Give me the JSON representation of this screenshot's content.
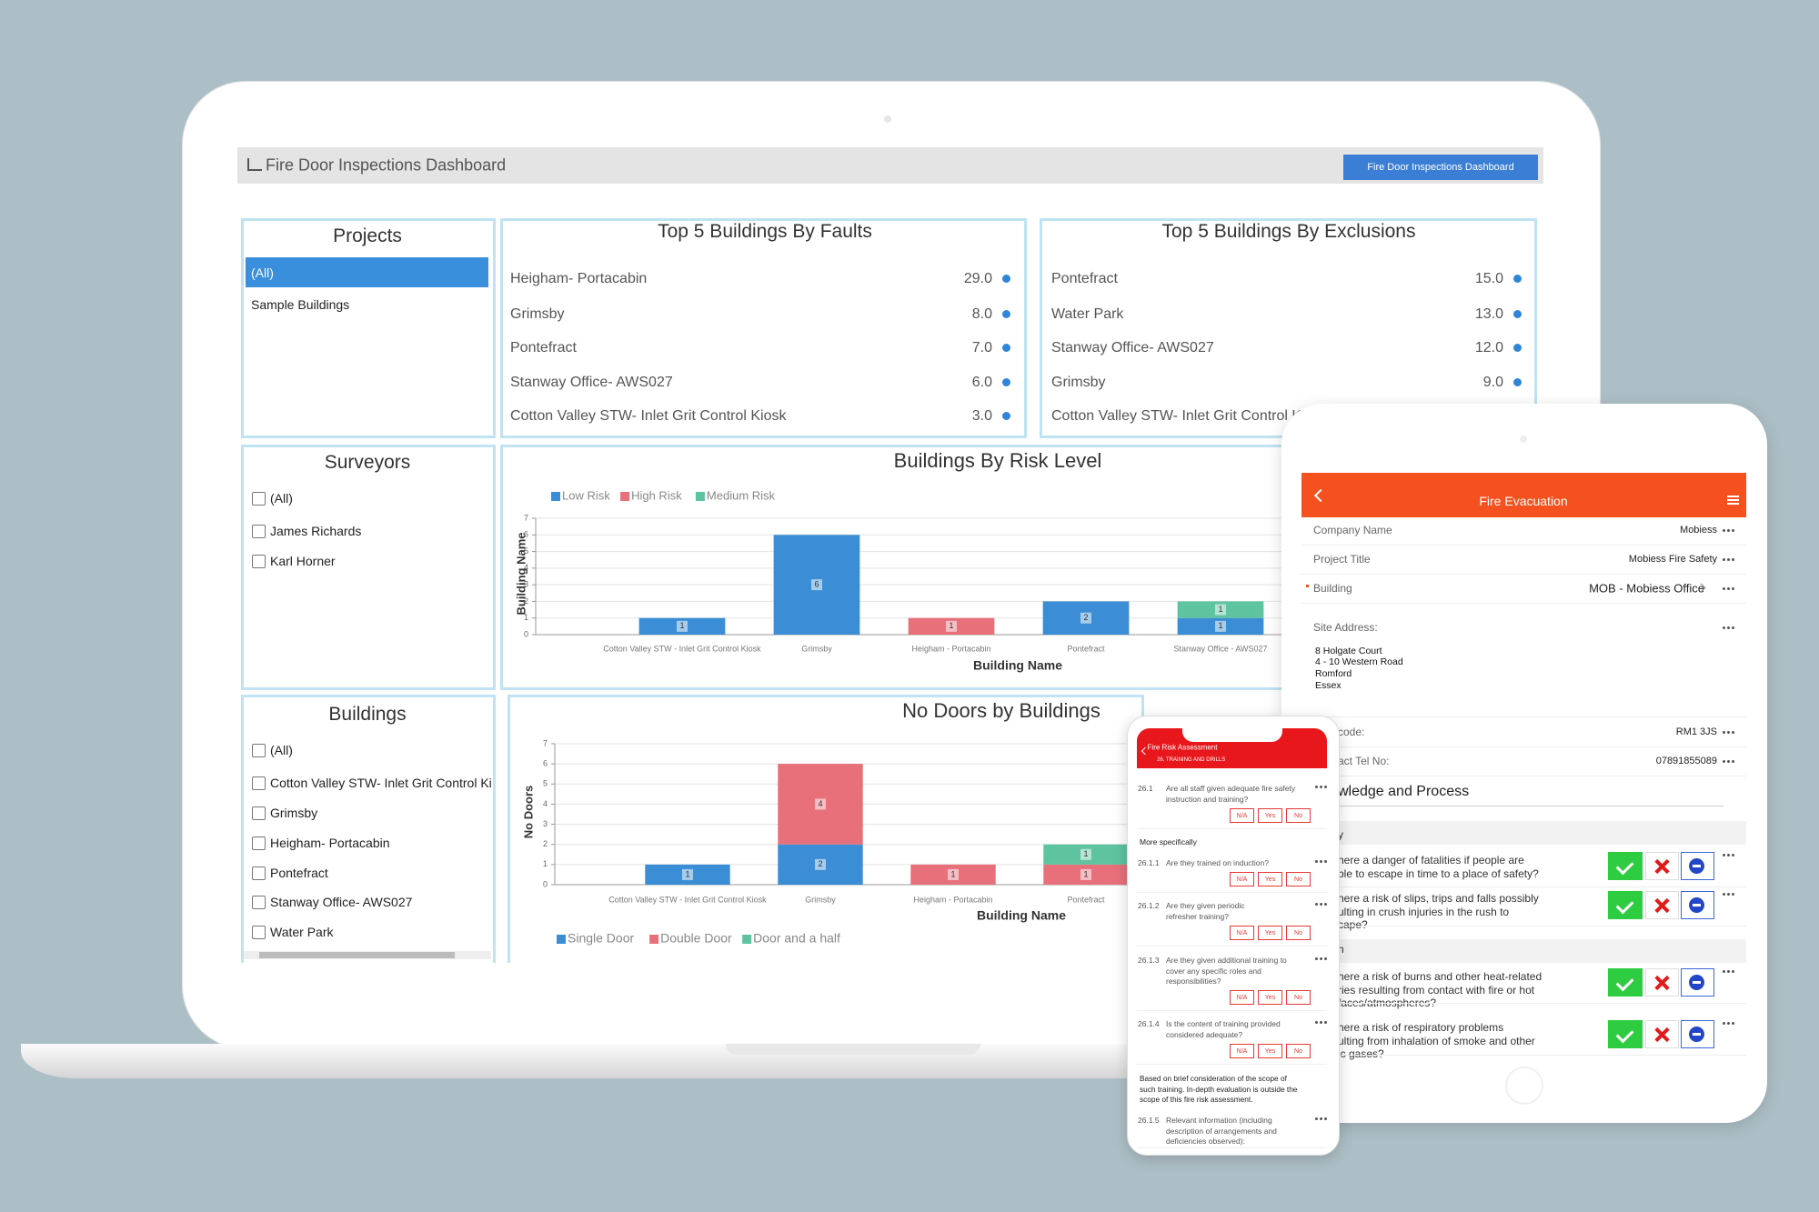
{
  "header": {
    "title": "Fire Door Inspections Dashboard",
    "button": "Fire Door Inspections Dashboard"
  },
  "projects": {
    "title": "Projects",
    "items": [
      "(All)",
      "Sample Buildings"
    ]
  },
  "surveyors": {
    "title": "Surveyors",
    "items": [
      "(All)",
      "James Richards",
      "Karl Horner"
    ]
  },
  "buildings": {
    "title": "Buildings",
    "items": [
      "(All)",
      "Cotton Valley STW- Inlet Grit Control Ki",
      "Grimsby",
      "Heigham- Portacabin",
      "Pontefract",
      "Stanway Office- AWS027",
      "Water Park"
    ]
  },
  "top_faults": {
    "title": "Top 5 Buildings By Faults",
    "rows": [
      {
        "name": "Heigham- Portacabin",
        "value": "29.0"
      },
      {
        "name": "Grimsby",
        "value": "8.0"
      },
      {
        "name": "Pontefract",
        "value": "7.0"
      },
      {
        "name": "Stanway Office- AWS027",
        "value": "6.0"
      },
      {
        "name": "Cotton Valley STW- Inlet Grit Control Kiosk",
        "value": "3.0"
      }
    ]
  },
  "top_exclusions": {
    "title": "Top 5 Buildings By Exclusions",
    "rows": [
      {
        "name": "Pontefract",
        "value": "15.0"
      },
      {
        "name": "Water Park",
        "value": "13.0"
      },
      {
        "name": "Stanway Office- AWS027",
        "value": "12.0"
      },
      {
        "name": "Grimsby",
        "value": "9.0"
      },
      {
        "name": "Cotton Valley STW- Inlet Grit Control K"
      }
    ]
  },
  "chart_data": [
    {
      "type": "bar",
      "stacked": true,
      "title": "Buildings By Risk Level",
      "x_label": "Building Name",
      "y_label": "Building Name",
      "categories": [
        "Cotton Valley STW - Inlet Grit Control Kiosk",
        "Grimsby",
        "Heigham - Portacabin",
        "Pontefract",
        "Stanway Office - AWS027"
      ],
      "series": [
        {
          "name": "Low Risk",
          "color": "#3b8ed6",
          "values": [
            1,
            6,
            0,
            2,
            1
          ]
        },
        {
          "name": "High Risk",
          "color": "#e8707a",
          "values": [
            0,
            0,
            1,
            0,
            0
          ]
        },
        {
          "name": "Medium Risk",
          "color": "#5ec4a0",
          "values": [
            0,
            0,
            0,
            0,
            1
          ]
        }
      ],
      "ylim": [
        0,
        7
      ],
      "yticks": [
        0,
        1,
        2,
        3,
        4,
        5,
        6,
        7
      ],
      "grid": true
    },
    {
      "type": "bar",
      "stacked": true,
      "title": "No Doors by Buildings",
      "x_label": "Building Name",
      "y_label": "No Doors",
      "categories": [
        "Cotton Valley STW - Inlet Grit Control Kiosk",
        "Grimsby",
        "Heigham - Portacabin",
        "Pontefract"
      ],
      "series": [
        {
          "name": "Single Door",
          "color": "#3b8ed6",
          "values": [
            1,
            2,
            0,
            0
          ]
        },
        {
          "name": "Double Door",
          "color": "#e8707a",
          "values": [
            0,
            4,
            1,
            1
          ]
        },
        {
          "name": "Door and a half",
          "color": "#5ec4a0",
          "values": [
            0,
            0,
            0,
            1
          ]
        }
      ],
      "ylim": [
        0,
        7
      ],
      "yticks": [
        0,
        1,
        2,
        3,
        4,
        5,
        6,
        7
      ],
      "grid": true
    }
  ],
  "tablet": {
    "title": "Fire Evacuation",
    "fields": [
      {
        "label": "Company Name",
        "value": "Mobiess"
      },
      {
        "label": "Project Title",
        "value": "Mobiess Fire Safety"
      },
      {
        "label": "Building",
        "value": "MOB - Mobiess Office"
      }
    ],
    "site_address_label": "Site Address:",
    "site_address": [
      "8 Holgate Court",
      "4 - 10 Western Road",
      "Romford",
      "Essex"
    ],
    "fields2": [
      {
        "label": "code:",
        "value": "RM1 3JS"
      },
      {
        "label": "act Tel No:",
        "value": "07891855089"
      }
    ],
    "section": "wledge and Process",
    "groups": [
      {
        "heading": "y",
        "questions": [
          [
            "here a danger of fatalities if people are",
            "ble to escape in time to a place of safety?"
          ],
          [
            "here a risk of slips, trips and falls possibly",
            "ulting in crush injuries in the rush to",
            "cape?"
          ]
        ]
      },
      {
        "heading": "h",
        "questions": [
          [
            "here a risk of burns and other heat-related",
            "ries resulting from contact with fire or hot",
            "faces/atmospheres?"
          ],
          [
            "here a risk of respiratory problems",
            "ulting from inhalation of smoke and other",
            "ic gases?"
          ]
        ]
      }
    ]
  },
  "phone": {
    "title": "Fire Risk Assessment",
    "subtitle": "26. TRAINING AND DRILLS",
    "answers": [
      "N/A",
      "Yes",
      "No"
    ],
    "more": "More specifically",
    "items": [
      {
        "number": "26.1",
        "lines": [
          "Are all staff given adequate fire safety",
          "instruction and training?"
        ]
      },
      {
        "number": "26.1.1",
        "lines": [
          "Are they trained on induction?"
        ]
      },
      {
        "number": "26.1.2",
        "lines": [
          "Are they given periodic",
          "refresher training?"
        ]
      },
      {
        "number": "26.1.3",
        "lines": [
          "Are they given additional training to",
          "cover any specific roles and",
          "responsibilities?"
        ]
      },
      {
        "number": "26.1.4",
        "lines": [
          "Is the content of training provided",
          "considered adequate?"
        ]
      },
      {
        "number": "26.1.5",
        "lines": [
          "Relevant information (including",
          "description of arrangements and",
          "deficiencies observed):"
        ]
      }
    ],
    "note": [
      "Based on brief consideration of the scope of",
      "such training. In-depth evaluation is outside the",
      "scope of this fire risk assessment."
    ]
  }
}
